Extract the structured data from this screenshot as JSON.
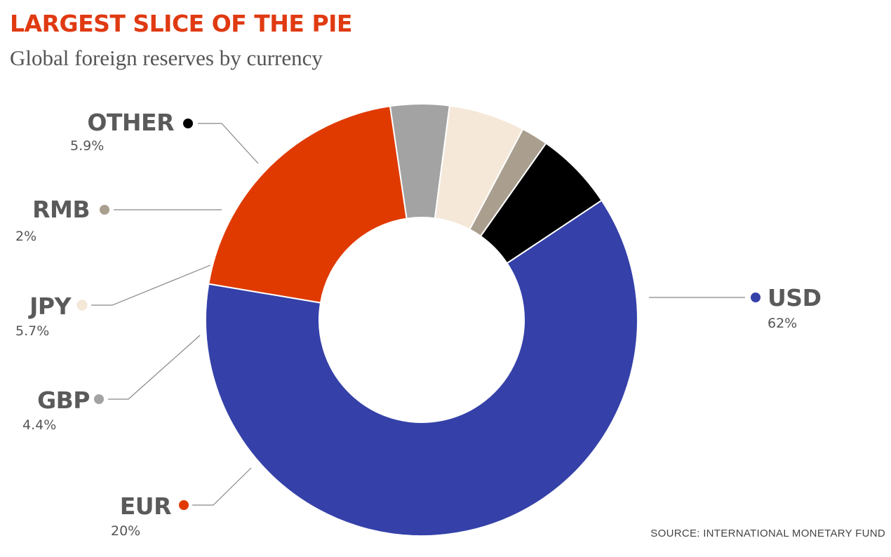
{
  "header": {
    "title": "LARGEST SLICE OF THE PIE",
    "subtitle": "Global foreign reserves by currency"
  },
  "footer": {
    "source": "SOURCE: INTERNATIONAL MONETARY FUND"
  },
  "chart_data": {
    "type": "pie",
    "style": "donut",
    "title": "LARGEST SLICE OF THE PIE",
    "subtitle": "Global foreign reserves by currency",
    "slices": [
      {
        "label": "USD",
        "value": 62,
        "value_label": "62%",
        "color": "#3541a8"
      },
      {
        "label": "EUR",
        "value": 20,
        "value_label": "20%",
        "color": "#e03a00"
      },
      {
        "label": "GBP",
        "value": 4.4,
        "value_label": "4.4%",
        "color": "#a3a3a3"
      },
      {
        "label": "JPY",
        "value": 5.7,
        "value_label": "5.7%",
        "color": "#f5e8d8"
      },
      {
        "label": "RMB",
        "value": 2,
        "value_label": "2%",
        "color": "#aa9f8f"
      },
      {
        "label": "OTHER",
        "value": 5.9,
        "value_label": "5.9%",
        "color": "#000000"
      }
    ],
    "legend": "callouts"
  }
}
